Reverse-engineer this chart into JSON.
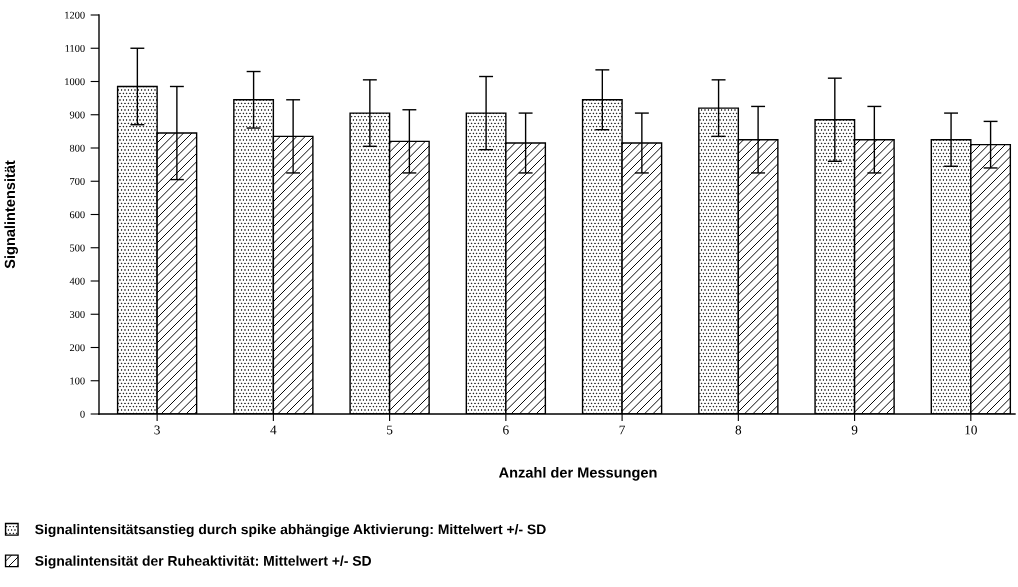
{
  "chart_data": {
    "type": "bar",
    "xlabel": "Anzahl der Messungen",
    "ylabel": "Signalintensität",
    "categories": [
      "3",
      "4",
      "5",
      "6",
      "7",
      "8",
      "9",
      "10"
    ],
    "series": [
      {
        "name": "Signalintensitätsanstieg durch spike abhängige Aktivierung: Mittelwert +/- SD",
        "color": "#000000",
        "values": [
          985,
          945,
          905,
          905,
          945,
          920,
          885,
          825
        ],
        "errors": [
          115,
          85,
          100,
          110,
          90,
          85,
          125,
          80
        ]
      },
      {
        "name": "Signalintensität der Ruheaktivität: Mittelwert +/- SD",
        "color": "#000000",
        "values": [
          845,
          835,
          820,
          815,
          815,
          825,
          825,
          810
        ],
        "errors": [
          140,
          110,
          95,
          90,
          90,
          100,
          100,
          70
        ]
      }
    ],
    "ylim": [
      0,
      1200
    ],
    "yticks": [
      0,
      100,
      200,
      300,
      400,
      500,
      600,
      700,
      800,
      900,
      1000,
      1100,
      1200
    ],
    "legend": "bottom left"
  }
}
